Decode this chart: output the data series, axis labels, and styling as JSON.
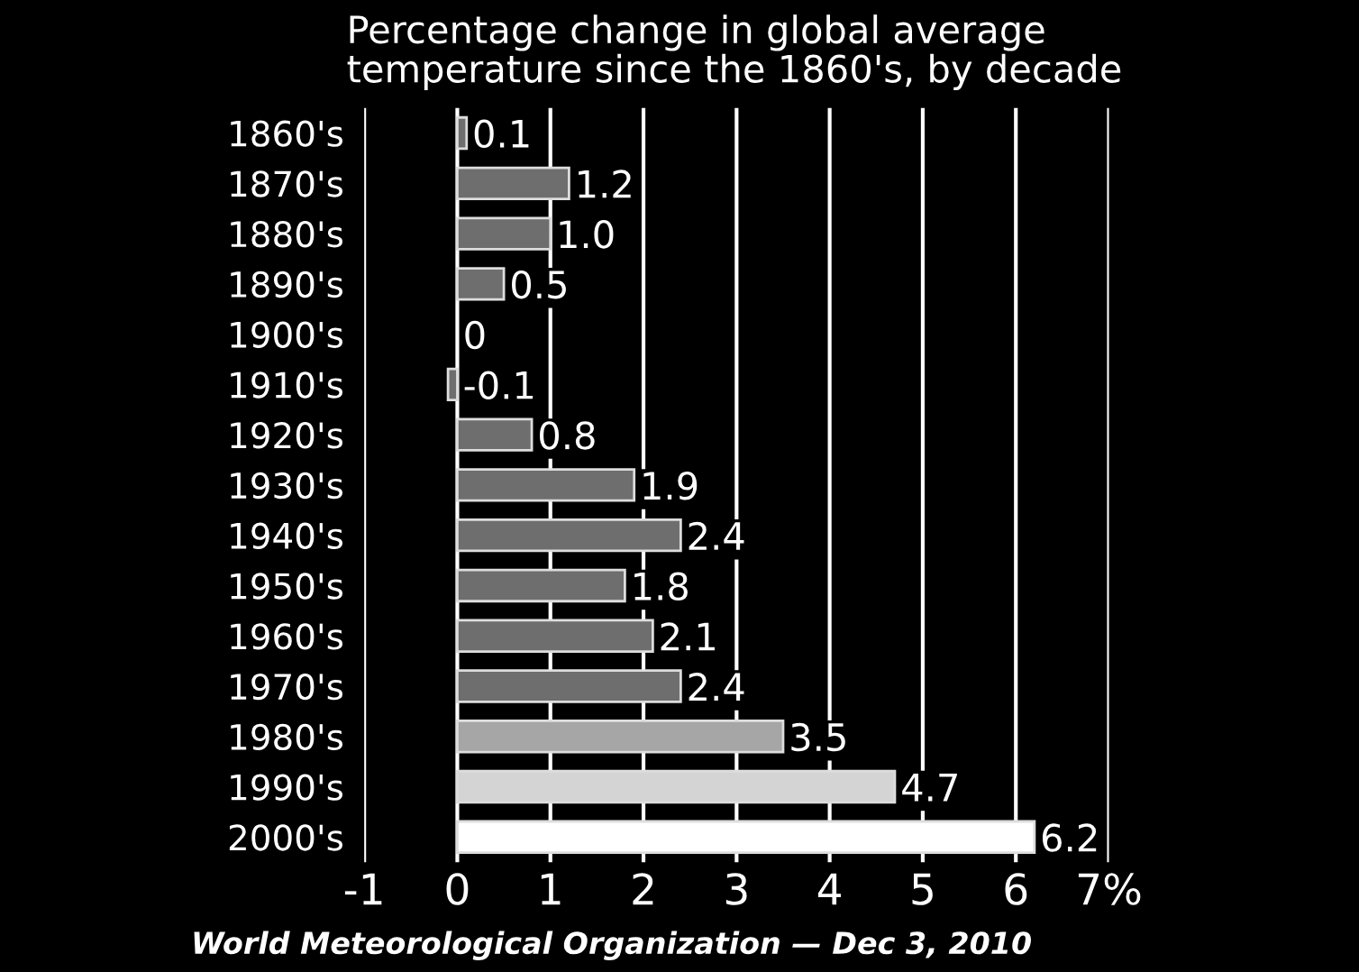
{
  "chart_data": {
    "type": "bar",
    "orientation": "horizontal",
    "title": "Percentage change in global average\ntemperature since the 1860's, by decade",
    "categories": [
      "1860's",
      "1870's",
      "1880's",
      "1890's",
      "1900's",
      "1910's",
      "1920's",
      "1930's",
      "1940's",
      "1950's",
      "1960's",
      "1970's",
      "1980's",
      "1990's",
      "2000's"
    ],
    "values": [
      0.1,
      1.2,
      1.0,
      0.5,
      0,
      -0.1,
      0.8,
      1.9,
      2.4,
      1.8,
      2.1,
      2.4,
      3.5,
      4.7,
      6.2
    ],
    "value_labels": [
      "0.1",
      "1.2",
      "1.0",
      "0.5",
      "0",
      "-0.1",
      "0.8",
      "1.9",
      "2.4",
      "1.8",
      "2.1",
      "2.4",
      "3.5",
      "4.7",
      "6.2"
    ],
    "colors": [
      "#6e6e6e",
      "#6e6e6e",
      "#6e6e6e",
      "#6e6e6e",
      "#6e6e6e",
      "#6e6e6e",
      "#6e6e6e",
      "#6e6e6e",
      "#6e6e6e",
      "#6e6e6e",
      "#6e6e6e",
      "#6e6e6e",
      "#a6a6a6",
      "#d4d4d4",
      "#ffffff"
    ],
    "xlim": [
      -1,
      7
    ],
    "xticks": [
      -1,
      0,
      1,
      2,
      3,
      4,
      5,
      6,
      {
        "value": 7,
        "label": "7%"
      }
    ],
    "grid": "x",
    "annotations": [
      "World Meteorological Organization — Dec 3, 2010"
    ]
  }
}
